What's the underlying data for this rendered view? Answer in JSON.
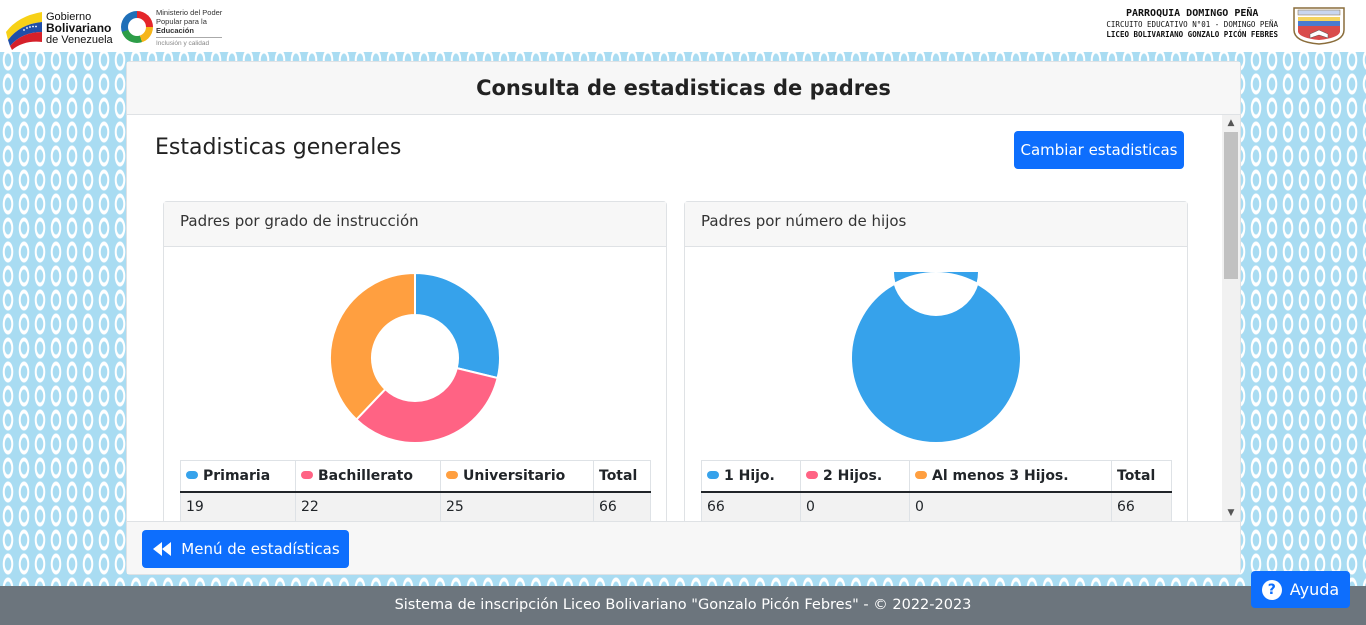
{
  "header": {
    "gov_logo": {
      "line1": "Gobierno",
      "line2": "Bolivariano",
      "line3": "de Venezuela"
    },
    "ministry_logo": {
      "line1": "Ministerio del Poder",
      "line2": "Popular para la",
      "line3": "Educación",
      "line4": "Inclusión y calidad"
    },
    "school": {
      "parroquia": "PARROQUIA DOMINGO PEÑA",
      "circuito": "CIRCUITO EDUCATIVO N°01 - DOMINGO PEÑA",
      "liceo": "LICEO BOLIVARIANO GONZALO PICÓN FEBRES"
    }
  },
  "page": {
    "title": "Consulta de estadisticas de padres",
    "section_title": "Estadisticas generales",
    "change_button": "Cambiar estadisticas",
    "menu_button": "Menú de estadísticas"
  },
  "colors": {
    "blue": "#36a2eb",
    "pink": "#ff6384",
    "orange": "#ff9f40",
    "primary": "#0d6efd"
  },
  "chart_data": [
    {
      "type": "pie",
      "title": "Padres por grado de instrucción",
      "categories": [
        "Primaria",
        "Bachillerato",
        "Universitario"
      ],
      "values": [
        19,
        22,
        25
      ],
      "total_label": "Total",
      "total": 66
    },
    {
      "type": "pie",
      "title": "Padres por número de hijos",
      "categories": [
        "1 Hijo.",
        "2 Hijos.",
        "Al menos 3 Hijos."
      ],
      "values": [
        66,
        0,
        0
      ],
      "total_label": "Total",
      "total": 66
    }
  ],
  "footer": {
    "text": "Sistema de inscripción Liceo Bolivariano \"Gonzalo Picón Febres\" - © 2022-2023"
  },
  "help_button": "Ayuda"
}
